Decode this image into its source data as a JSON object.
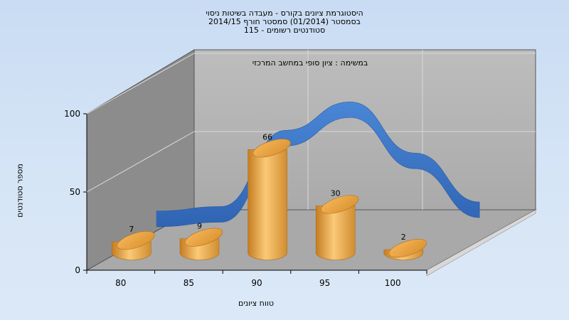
{
  "titles": {
    "line1": "היסטוגרמת ציונים בקורס - מעבדה בשיטות ניסוי",
    "line2": "בסמסטר  (01/2014)  סמסטר חורף 2014/15",
    "line3": "115 - סטודנטים רשומים"
  },
  "colors": {
    "background": "#cfe0f5",
    "bar": "#f0a83c",
    "curve": "#3f78c8",
    "back_wall": "#b3b3b3",
    "side_wall": "#8c8c8c",
    "floor": "#a6a6a6"
  },
  "chart_data": {
    "type": "bar",
    "title": "היסטוגרמת ציונים בקורס - מעבדה בשיטות ניסוי",
    "annotation": "במשימה : ציון סופי במחשב המרכזי",
    "xlabel": "טווח ציונים",
    "ylabel": "מספר סטודנטים",
    "x_ticks": [
      "80",
      "85",
      "90",
      "95",
      "100"
    ],
    "y_ticks": [
      "0",
      "50",
      "100"
    ],
    "ylim": [
      0,
      100
    ],
    "categories": [
      "80",
      "85",
      "90",
      "95",
      "100"
    ],
    "values": [
      7,
      9,
      66,
      30,
      2
    ],
    "curve_values": [
      4,
      8,
      75,
      100,
      55,
      12
    ],
    "grid": true,
    "style": "3d"
  }
}
